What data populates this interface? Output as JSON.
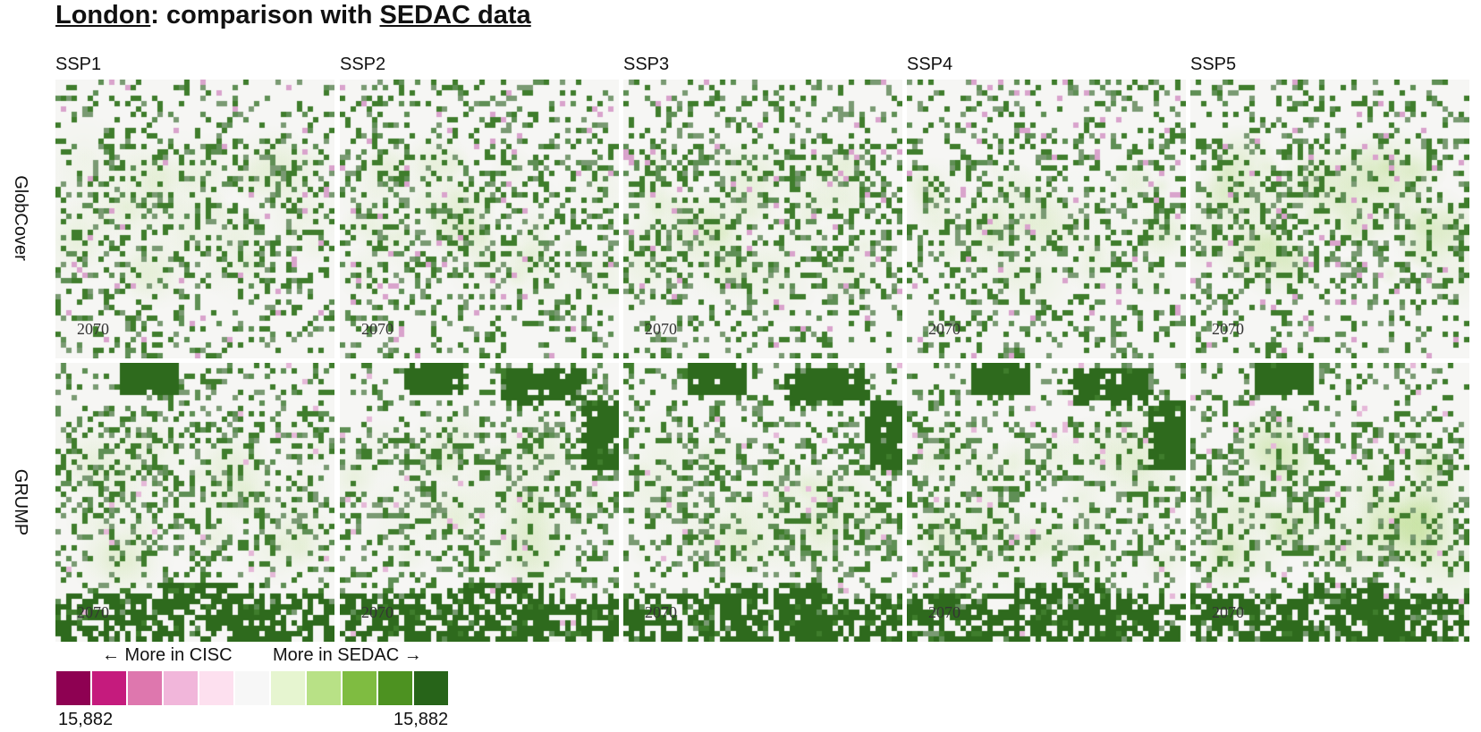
{
  "title": {
    "city_link": "London",
    "middle": ": comparison with ",
    "source_link": "SEDAC data"
  },
  "columns": [
    "SSP1",
    "SSP2",
    "SSP3",
    "SSP4",
    "SSP5"
  ],
  "rows": [
    "GlobCover",
    "GRUMP"
  ],
  "year": "2070",
  "legend": {
    "left_label": "← More in CISC",
    "right_label": "More in SEDAC →",
    "min_value": "15,882",
    "max_value": "15,882",
    "colors": [
      "#8e0152",
      "#c51b7d",
      "#de77ae",
      "#f1b6da",
      "#fde0ef",
      "#f7f7f7",
      "#e6f5d0",
      "#b8e186",
      "#7fbc41",
      "#4d9221",
      "#276419"
    ]
  },
  "colors": {
    "background": "#ffffff",
    "neutral": "#f7f7f7"
  }
}
